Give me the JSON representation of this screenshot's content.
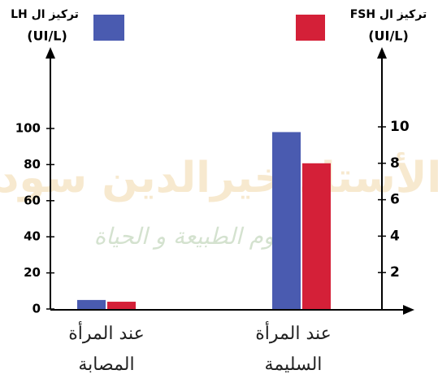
{
  "chart_data": {
    "type": "bar",
    "categories": [
      "عند المرأة المصابة",
      "عند المرأة السليمة"
    ],
    "series": [
      {
        "name": "تركيز ال LH",
        "color": "#4a5bb0",
        "values": [
          5,
          98
        ]
      },
      {
        "name": "تركيز ال FSH",
        "color": "#d42038",
        "axis": "y2",
        "values": [
          0.4,
          8
        ]
      }
    ],
    "ylabel": "(UI/L)",
    "y2label": "(UI/L)",
    "ylim": [
      0,
      100
    ],
    "yticks": [
      0,
      20,
      40,
      60,
      80,
      100
    ],
    "y2lim": [
      0,
      10
    ],
    "y2ticks": [
      2,
      4,
      6,
      8,
      10
    ],
    "watermark": [
      "الأستاذ خيرالدين سود",
      "علوم الطبيعة و الحياة"
    ]
  }
}
